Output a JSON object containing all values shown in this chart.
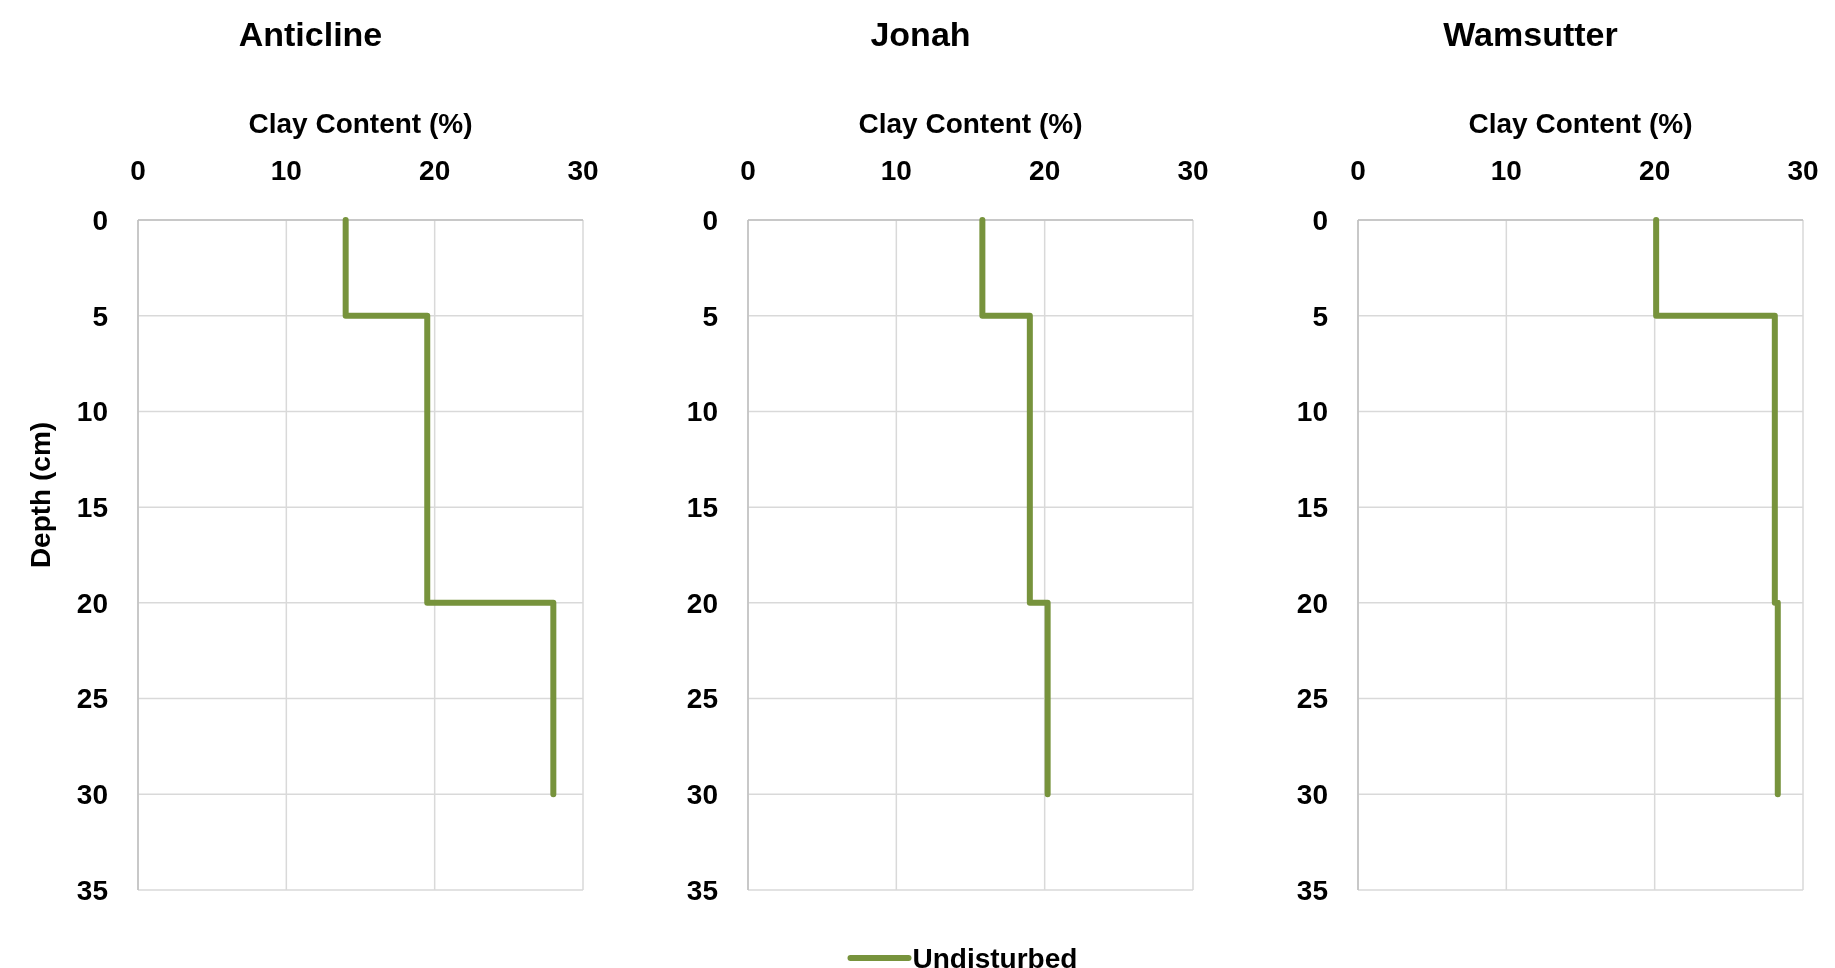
{
  "chart_data": [
    {
      "type": "line",
      "title": "Anticline",
      "xlabel": "Clay Content (%)",
      "ylabel": "Depth (cm)",
      "xlim": [
        0,
        30
      ],
      "xticks": [
        0,
        10,
        20,
        30
      ],
      "ylim": [
        35,
        0
      ],
      "yticks": [
        0,
        5,
        10,
        15,
        20,
        25,
        30,
        35
      ],
      "grid": true,
      "legend": false,
      "series": [
        {
          "color": "#77933c",
          "x": [
            14,
            14,
            19.5,
            19.5,
            28,
            28
          ],
          "values": [
            0,
            5,
            5,
            20,
            20,
            30
          ]
        }
      ]
    },
    {
      "type": "line",
      "title": "Jonah",
      "xlabel": "Clay Content (%)",
      "xlim": [
        0,
        30
      ],
      "xticks": [
        0,
        10,
        20,
        30
      ],
      "ylim": [
        35,
        0
      ],
      "yticks": [
        0,
        5,
        10,
        15,
        20,
        25,
        30,
        35
      ],
      "grid": true,
      "legend": "bottom",
      "series": [
        {
          "name": "Undisturbed",
          "color": "#77933c",
          "x": [
            15.8,
            15.8,
            19,
            19,
            20.2,
            20.2
          ],
          "values": [
            0,
            5,
            5,
            20,
            20,
            30
          ]
        }
      ]
    },
    {
      "type": "line",
      "title": "Wamsutter",
      "xlabel": "Clay Content (%)",
      "xlim": [
        0,
        30
      ],
      "xticks": [
        0,
        10,
        20,
        30
      ],
      "ylim": [
        35,
        0
      ],
      "yticks": [
        0,
        5,
        10,
        15,
        20,
        25,
        30,
        35
      ],
      "grid": true,
      "legend": false,
      "series": [
        {
          "color": "#77933c",
          "x": [
            20.1,
            20.1,
            28.1,
            28.1,
            28.3,
            28.3
          ],
          "values": [
            0,
            5,
            5,
            20,
            20,
            30
          ]
        }
      ]
    }
  ]
}
